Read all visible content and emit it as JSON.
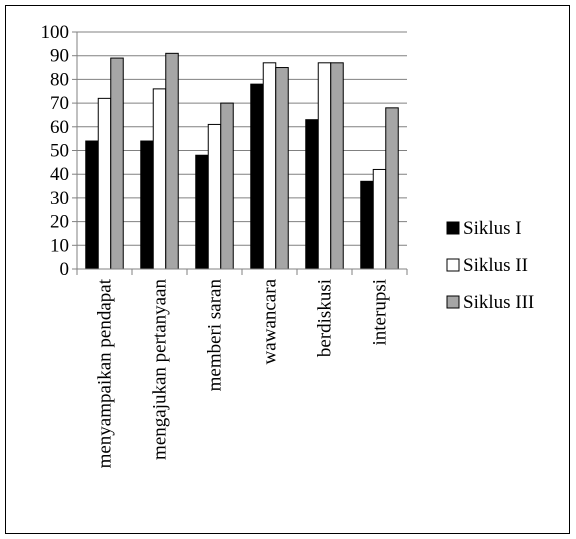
{
  "chart_data": {
    "type": "bar",
    "categories": [
      "menyampaikan pendapat",
      "mengajukan pertanyaan",
      "memberi saran",
      "wawancara",
      "berdiskusi",
      "interupsi"
    ],
    "series": [
      {
        "name": "Siklus I",
        "values": [
          54,
          54,
          48,
          78,
          63,
          37
        ],
        "color": "#000000"
      },
      {
        "name": "Siklus II",
        "values": [
          72,
          76,
          61,
          87,
          87,
          42
        ],
        "color": "#ffffff"
      },
      {
        "name": "Siklus III",
        "values": [
          89,
          91,
          70,
          85,
          87,
          68
        ],
        "color": "#a6a6a6"
      }
    ],
    "yticks": [
      "0",
      "10",
      "20",
      "30",
      "40",
      "50",
      "60",
      "70",
      "80",
      "90",
      "100"
    ],
    "ylim": [
      0,
      100
    ],
    "grid": true,
    "legend_position": "right"
  }
}
